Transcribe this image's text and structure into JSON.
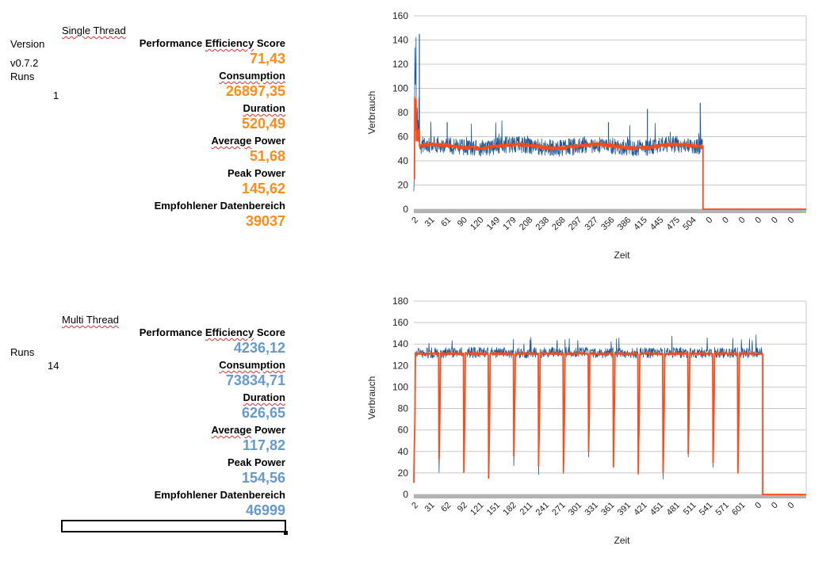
{
  "single": {
    "header": "Single Thread",
    "version_label": "Version",
    "version_value": "v0.7.2",
    "runs_label": "Runs",
    "runs_value": "1",
    "metrics": [
      {
        "label": "Performance Efficiency Score",
        "value": "71,43"
      },
      {
        "label": "Consumption",
        "value": "26897,35"
      },
      {
        "label": "Duration",
        "value": "520,49"
      },
      {
        "label": "Average Power",
        "value": "51,68"
      },
      {
        "label": "Peak Power",
        "value": "145,62"
      },
      {
        "label": "Empfohlener Datenbereich",
        "value": "39037"
      }
    ],
    "value_color": "#ff8c1a"
  },
  "multi": {
    "header": "Multi Thread",
    "runs_label": "Runs",
    "runs_value": "14",
    "metrics": [
      {
        "label": "Performance Efficiency Score",
        "value": "4236,12"
      },
      {
        "label": "Consumption",
        "value": "73834,71"
      },
      {
        "label": "Duration",
        "value": "626,65"
      },
      {
        "label": "Average Power",
        "value": "117,82"
      },
      {
        "label": "Peak Power",
        "value": "154,56"
      },
      {
        "label": "Empfohlener Datenbereich",
        "value": "46999"
      }
    ],
    "value_color": "#6699cc"
  },
  "chart_data": [
    {
      "type": "line",
      "xlabel": "Zeit",
      "ylabel": "Verbrauch",
      "ylim": [
        0,
        160
      ],
      "yticks": [
        "0",
        "20",
        "40",
        "60",
        "80",
        "100",
        "120",
        "140",
        "160"
      ],
      "categories": [
        "2",
        "31",
        "61",
        "90",
        "120",
        "149",
        "179",
        "208",
        "238",
        "268",
        "297",
        "327",
        "356",
        "386",
        "415",
        "445",
        "475",
        "504",
        "0",
        "0",
        "0",
        "0",
        "0",
        "0"
      ],
      "series": [
        {
          "color": "#1f5a96",
          "approx_level": 52,
          "active_until": 520,
          "spikes": [
            [
              10,
              145
            ],
            [
              60,
              72
            ],
            [
              350,
              72
            ],
            [
              420,
              83
            ],
            [
              515,
              88
            ]
          ]
        },
        {
          "color": "#ff4a1a",
          "approx_level": 52,
          "active_until": 520,
          "spikes": [
            [
              10,
              93
            ]
          ]
        }
      ],
      "grid": true,
      "legend": "none"
    },
    {
      "type": "line",
      "xlabel": "Zeit",
      "ylabel": "Verbrauch",
      "ylim": [
        0,
        180
      ],
      "yticks": [
        "0",
        "20",
        "40",
        "60",
        "80",
        "100",
        "120",
        "140",
        "160",
        "180"
      ],
      "categories": [
        "2",
        "31",
        "62",
        "92",
        "121",
        "151",
        "182",
        "211",
        "241",
        "271",
        "301",
        "331",
        "361",
        "391",
        "421",
        "451",
        "481",
        "511",
        "541",
        "571",
        "601",
        "0",
        "0",
        "0"
      ],
      "series": [
        {
          "color": "#1f5a96",
          "approx_level": 132,
          "active_until": 626,
          "dips_per_run": 14,
          "dip_min": 10
        },
        {
          "color": "#ff4a1a",
          "approx_level": 131,
          "active_until": 626,
          "dips_per_run": 14,
          "dip_min": 15
        }
      ],
      "grid": true,
      "legend": "none"
    }
  ]
}
